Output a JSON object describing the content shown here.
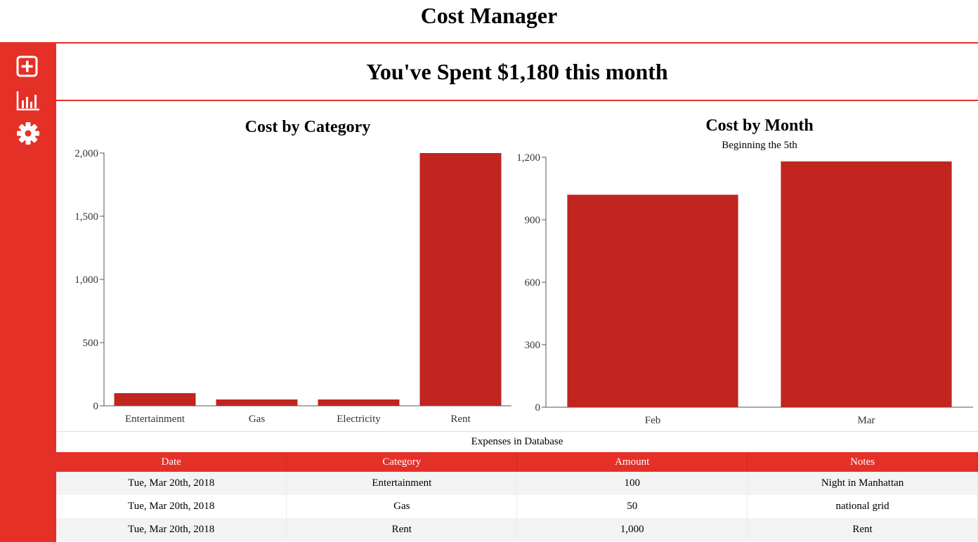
{
  "header": {
    "title": "Cost Manager"
  },
  "sidebar": {
    "items": [
      {
        "icon": "plus-square-icon",
        "label": "Add"
      },
      {
        "icon": "bar-chart-icon",
        "label": "Charts"
      },
      {
        "icon": "gear-icon",
        "label": "Settings"
      }
    ]
  },
  "summary": {
    "text": "You've Spent $1,180 this month"
  },
  "colors": {
    "accent": "#e53028",
    "bar": "#c02520"
  },
  "chart_data": [
    {
      "type": "bar",
      "title": "Cost by Category",
      "categories": [
        "Entertainment",
        "Gas",
        "Electricity",
        "Rent"
      ],
      "values": [
        100,
        50,
        50,
        2000
      ],
      "ylim": [
        0,
        2000
      ],
      "yticks": [
        0,
        500,
        1000,
        1500,
        2000
      ],
      "ytick_labels": [
        "0",
        "500",
        "1,000",
        "1,500",
        "2,000"
      ],
      "xlabel": "",
      "ylabel": ""
    },
    {
      "type": "bar",
      "title": "Cost by Month",
      "subtitle": "Beginning the 5th",
      "categories": [
        "Feb",
        "Mar"
      ],
      "values": [
        1020,
        1180
      ],
      "ylim": [
        0,
        1200
      ],
      "yticks": [
        0,
        300,
        600,
        900,
        1200
      ],
      "ytick_labels": [
        "0",
        "300",
        "600",
        "900",
        "1,200"
      ],
      "xlabel": "",
      "ylabel": ""
    }
  ],
  "expenses": {
    "caption": "Expenses in Database",
    "columns": [
      "Date",
      "Category",
      "Amount",
      "Notes"
    ],
    "rows": [
      [
        "Tue, Mar 20th, 2018",
        "Entertainment",
        "100",
        "Night in Manhattan"
      ],
      [
        "Tue, Mar 20th, 2018",
        "Gas",
        "50",
        "national grid"
      ],
      [
        "Tue, Mar 20th, 2018",
        "Rent",
        "1,000",
        "Rent"
      ]
    ]
  }
}
